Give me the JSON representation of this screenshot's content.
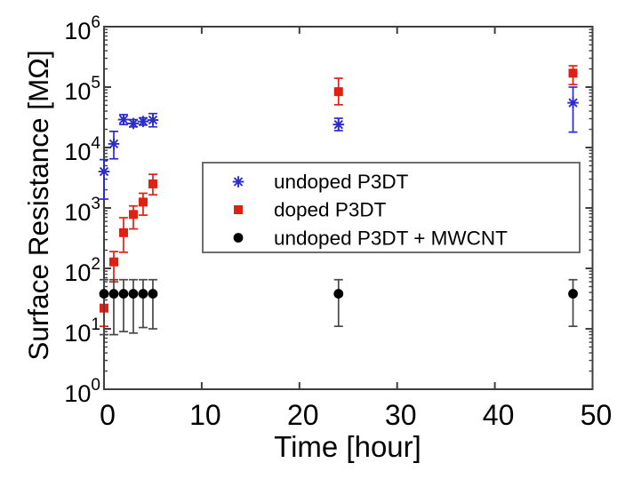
{
  "chart_data": {
    "type": "scatter",
    "title": "",
    "x_label": "Time [hour]",
    "y_label": "Surface Resistance [MΩ]",
    "y_scale": "log",
    "x_range": [
      0,
      50
    ],
    "y_range": [
      1,
      1000000
    ],
    "x_ticks": [
      0,
      10,
      20,
      30,
      40,
      50
    ],
    "y_tick_exponents": [
      0,
      1,
      2,
      3,
      4,
      5,
      6
    ],
    "grid": false,
    "legend_position": "inside upper-right-of-center",
    "axis_color": "#3f3f3f",
    "series": [
      {
        "name": "undoped P3DT",
        "marker": "asterisk",
        "color": "#2b2bd0",
        "points": [
          {
            "x": 0,
            "y": 4000,
            "lo": 1400,
            "hi": 6300
          },
          {
            "x": 1,
            "y": 11500,
            "lo": 6500,
            "hi": 18500
          },
          {
            "x": 2,
            "y": 29000,
            "lo": 24000,
            "hi": 35000
          },
          {
            "x": 3,
            "y": 25000,
            "lo": 22000,
            "hi": 29000
          },
          {
            "x": 4,
            "y": 27000,
            "lo": 23500,
            "hi": 31000
          },
          {
            "x": 5,
            "y": 28500,
            "lo": 22000,
            "hi": 36500
          },
          {
            "x": 24,
            "y": 24000,
            "lo": 19000,
            "hi": 30500
          },
          {
            "x": 48,
            "y": 55000,
            "lo": 18000,
            "hi": 100000
          }
        ]
      },
      {
        "name": "doped P3DT",
        "marker": "square",
        "color": "#e02012",
        "points": [
          {
            "x": 0,
            "y": 22,
            "lo": 11,
            "hi": 35
          },
          {
            "x": 1,
            "y": 128,
            "lo": 60,
            "hi": 190
          },
          {
            "x": 2,
            "y": 390,
            "lo": 185,
            "hi": 690
          },
          {
            "x": 3,
            "y": 780,
            "lo": 450,
            "hi": 1080
          },
          {
            "x": 4,
            "y": 1250,
            "lo": 760,
            "hi": 1750
          },
          {
            "x": 5,
            "y": 2500,
            "lo": 1650,
            "hi": 3600
          },
          {
            "x": 24,
            "y": 84000,
            "lo": 51000,
            "hi": 140000
          },
          {
            "x": 48,
            "y": 170000,
            "lo": 110000,
            "hi": 225000
          }
        ]
      },
      {
        "name": "undoped P3DT + MWCNT",
        "marker": "circle",
        "color": "#000000",
        "error_color": "#474747",
        "points": [
          {
            "x": 0,
            "y": 38,
            "lo": 8,
            "hi": 65
          },
          {
            "x": 1,
            "y": 38,
            "lo": 8,
            "hi": 65
          },
          {
            "x": 2,
            "y": 38,
            "lo": 9,
            "hi": 65
          },
          {
            "x": 3,
            "y": 38,
            "lo": 8.5,
            "hi": 65
          },
          {
            "x": 4,
            "y": 38,
            "lo": 10.5,
            "hi": 65
          },
          {
            "x": 5,
            "y": 38,
            "lo": 10,
            "hi": 65
          },
          {
            "x": 24,
            "y": 38,
            "lo": 11,
            "hi": 65
          },
          {
            "x": 48,
            "y": 38,
            "lo": 11,
            "hi": 65
          }
        ]
      }
    ]
  }
}
